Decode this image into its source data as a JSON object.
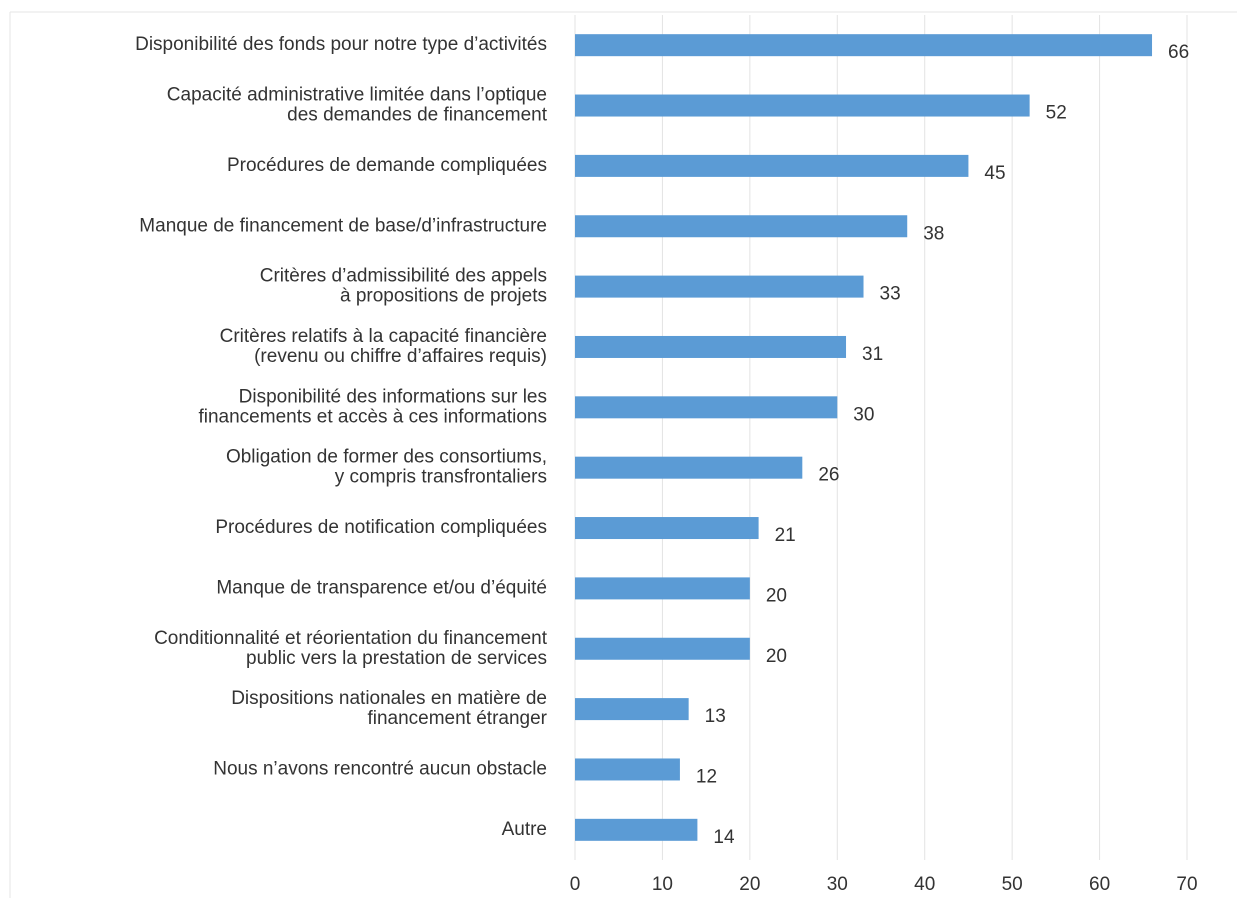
{
  "chart_data": {
    "type": "bar",
    "orientation": "horizontal",
    "categories": [
      "Disponibilité des fonds pour notre type d’activités",
      "Capacité administrative limitée dans l’optique\ndes demandes de financement",
      "Procédures de demande compliquées",
      "Manque de financement de base/d’infrastructure",
      "Critères d’admissibilité des appels\nà propositions de projets",
      "Critères relatifs à la capacité financière\n(revenu ou chiffre d’affaires requis)",
      "Disponibilité des informations sur les\nfinancements et accès à ces informations",
      "Obligation de former des consortiums,\ny compris transfrontaliers",
      "Procédures de notification compliquées",
      "Manque de transparence et/ou d’équité",
      "Conditionnalité et réorientation du financement\npublic vers la prestation de services",
      "Dispositions nationales en matière de\nfinancement étranger",
      "Nous n’avons rencontré aucun obstacle",
      "Autre"
    ],
    "values": [
      66,
      52,
      45,
      38,
      33,
      31,
      30,
      26,
      21,
      20,
      20,
      13,
      12,
      14
    ],
    "color": "#5b9bd5",
    "xlim": [
      0,
      70
    ],
    "xticks": [
      0,
      10,
      20,
      30,
      40,
      50,
      60,
      70
    ],
    "grid": true
  }
}
